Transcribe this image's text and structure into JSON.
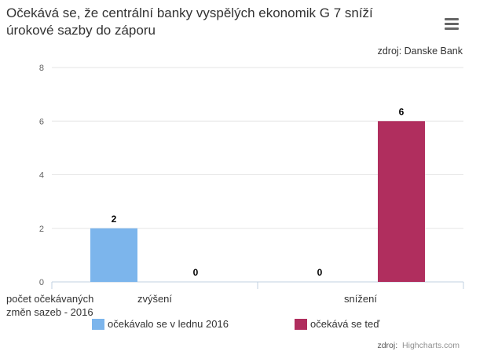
{
  "title": "Očekává se, že centrální banky vyspělých ekonomik G 7 sníží úrokové sazby do záporu",
  "source_top": "zdroj: Danske Bank",
  "credits": {
    "label": "zdroj:",
    "link": "Highcharts.com"
  },
  "menu_icon": "hamburger-menu-icon",
  "chart_data": {
    "type": "bar",
    "categories": [
      "zvýšení",
      "snížení"
    ],
    "series": [
      {
        "name": "očekávalo se v lednu 2016",
        "values": [
          2,
          0
        ],
        "color": "#7cb5ec"
      },
      {
        "name": "očekává se teď",
        "values": [
          0,
          6
        ],
        "color": "#b02e5e"
      }
    ],
    "xlabel": "počet očekávaných změn sazeb - 2016",
    "ylabel": "",
    "ylim": [
      0,
      8
    ],
    "yticks": [
      0,
      2,
      4,
      6,
      8
    ],
    "grid": true,
    "legend": "bottom"
  }
}
